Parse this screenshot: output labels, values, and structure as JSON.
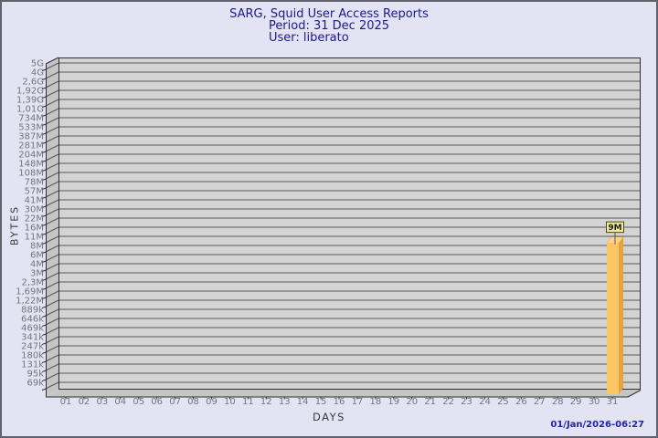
{
  "header": {
    "title": "SARG, Squid User Access Reports",
    "period": "Period: 31 Dec 2025",
    "user": "User: liberato"
  },
  "footer": {
    "timestamp": "01/Jan/2026-06:27"
  },
  "chart_data": {
    "type": "bar",
    "style": "3d-bar",
    "xlabel": "DAYS",
    "ylabel": "BYTES",
    "scale": "log",
    "grid": "horizontal",
    "categories": [
      "01",
      "02",
      "03",
      "04",
      "05",
      "06",
      "07",
      "08",
      "09",
      "10",
      "11",
      "12",
      "13",
      "14",
      "15",
      "16",
      "17",
      "18",
      "19",
      "20",
      "21",
      "22",
      "23",
      "24",
      "25",
      "26",
      "27",
      "28",
      "29",
      "30",
      "31"
    ],
    "values": [
      0,
      0,
      0,
      0,
      0,
      0,
      0,
      0,
      0,
      0,
      0,
      0,
      0,
      0,
      0,
      0,
      0,
      0,
      0,
      0,
      0,
      0,
      0,
      0,
      0,
      0,
      0,
      0,
      0,
      0,
      9000000
    ],
    "bar_labels": [
      "",
      "",
      "",
      "",
      "",
      "",
      "",
      "",
      "",
      "",
      "",
      "",
      "",
      "",
      "",
      "",
      "",
      "",
      "",
      "",
      "",
      "",
      "",
      "",
      "",
      "",
      "",
      "",
      "",
      "",
      "9M"
    ],
    "y_tick_labels": [
      "5G",
      "4G",
      "2,6G",
      "1,92G",
      "1,39G",
      "1,01G",
      "734M",
      "533M",
      "387M",
      "281M",
      "204M",
      "148M",
      "108M",
      "78M",
      "57M",
      "41M",
      "30M",
      "22M",
      "16M",
      "11M",
      "8M",
      "6M",
      "4M",
      "3M",
      "2,3M",
      "1,69M",
      "1,22M",
      "889k",
      "646k",
      "469k",
      "341k",
      "247k",
      "180k",
      "131k",
      "95k",
      "69k"
    ],
    "ylim": [
      "69k",
      "5G"
    ]
  },
  "colors": {
    "page_bg": "#e3e3f3",
    "page_border": "#62626f",
    "title_text": "#1a1a8c",
    "plot_bg": "#d4d4d4",
    "wall": "#c5c5c5",
    "grid_line": "#585858",
    "axis_line": "#2e2e2e",
    "tick_text": "#75757d",
    "axis_title_text": "#3a3a3a",
    "bar_front": "#fcc566",
    "bar_side": "#e7a23c",
    "bar_top": "#fdd68c",
    "value_badge_bg": "#f2eb9e",
    "value_badge_border": "#4a4a10",
    "value_badge_text": "#1c1c1c",
    "footer_text": "#2121b5"
  }
}
